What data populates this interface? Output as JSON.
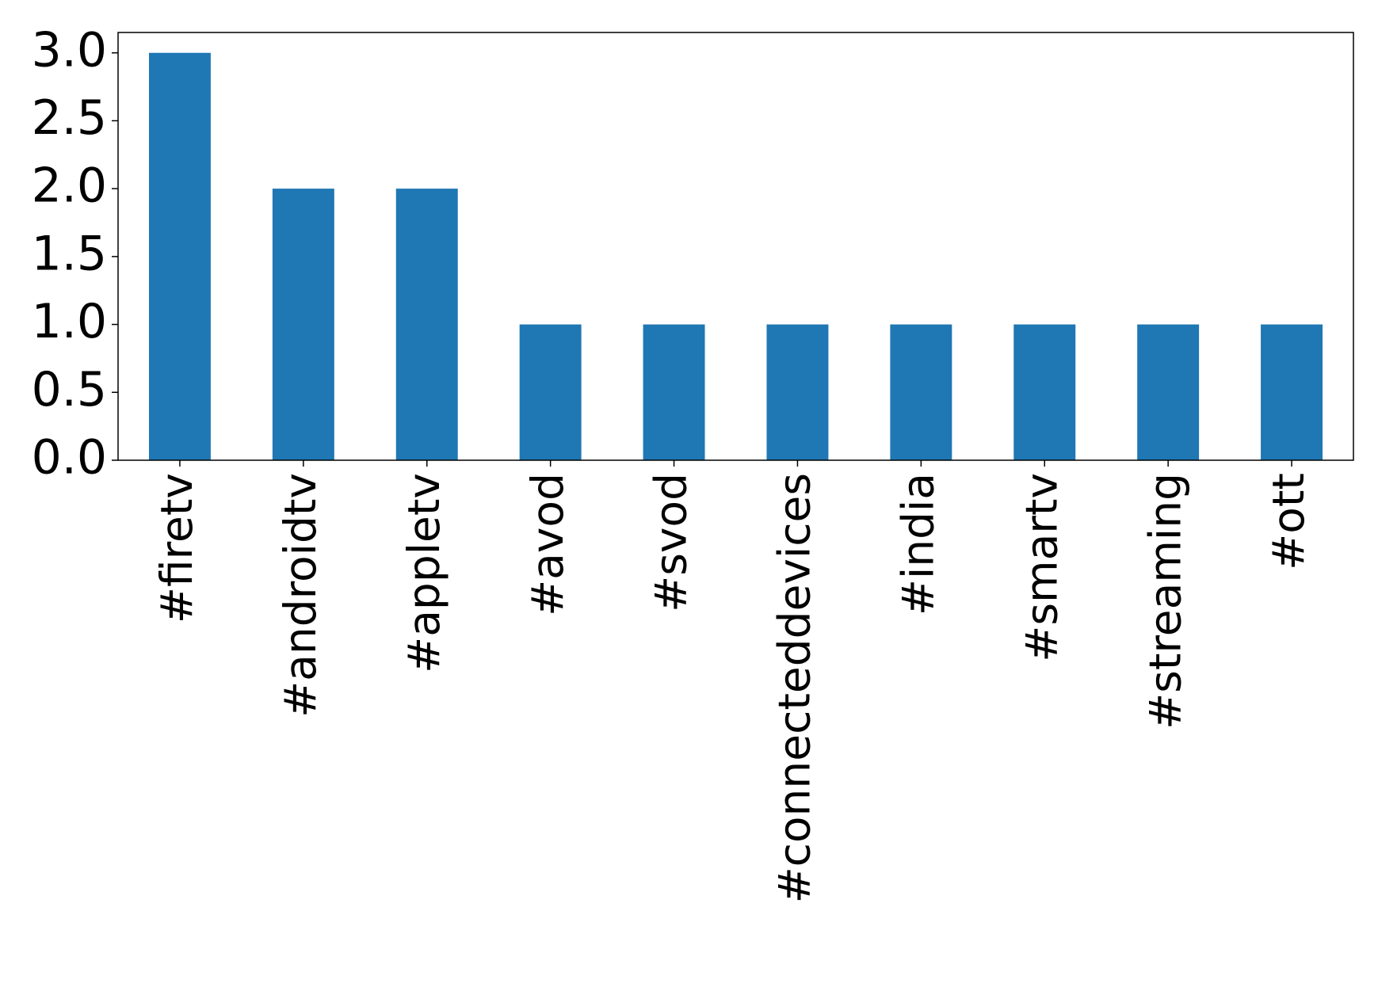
{
  "chart_data": {
    "type": "bar",
    "categories": [
      "#firetv",
      "#androidtv",
      "#appletv",
      "#avod",
      "#svod",
      "#connecteddevices",
      "#india",
      "#smartv",
      "#streaming",
      "#ott"
    ],
    "values": [
      3,
      2,
      2,
      1,
      1,
      1,
      1,
      1,
      1,
      1
    ],
    "color": "#1f77b4",
    "ylim": [
      0,
      3.15
    ],
    "yticks": [
      {
        "value": 0,
        "label": "0.0"
      },
      0.5,
      {
        "value": 1,
        "label": "1.0"
      },
      1.5,
      {
        "value": 2,
        "label": "2.0"
      },
      2.5,
      {
        "value": 3,
        "label": "3.0"
      }
    ],
    "grid": false
  }
}
